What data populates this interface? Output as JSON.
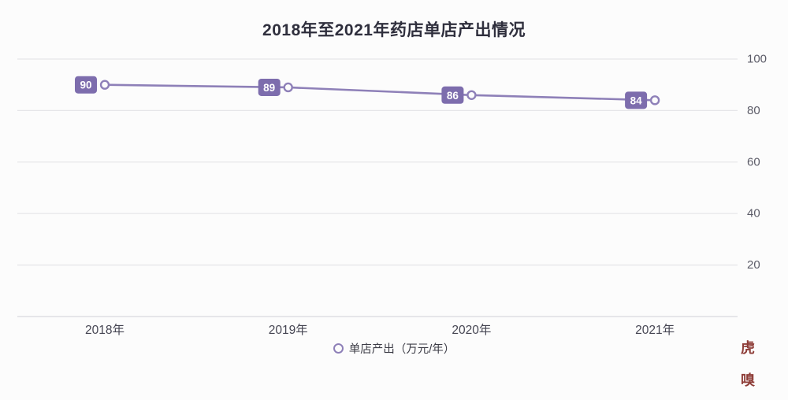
{
  "title": "2018年至2021年药店单店产出情况",
  "legend": {
    "label": "单店产出（万元/年）"
  },
  "watermark": {
    "line1": "虎",
    "line2": "嗅"
  },
  "colors": {
    "background": "#fcfcfc",
    "line": "#8e80b8",
    "badge": "#7d6dad",
    "badge_text": "#ffffff",
    "grid": "#e5e5e8",
    "axis": "#d9d9dd",
    "title": "#2f2f3d",
    "ytick": "#5c5c68",
    "xtick": "#464653",
    "watermark": "#8e3d38"
  },
  "chart_data": {
    "type": "line",
    "title": "2018年至2021年药店单店产出情况",
    "categories": [
      "2018年",
      "2019年",
      "2020年",
      "2021年"
    ],
    "series": [
      {
        "name": "单店产出（万元/年）",
        "values": [
          90,
          89,
          86,
          84
        ]
      }
    ],
    "data_labels": [
      "90",
      "89",
      "86",
      "84"
    ],
    "xlabel": "",
    "ylabel": "",
    "ylim": [
      0,
      100
    ],
    "yticks": [
      20,
      40,
      60,
      80,
      100
    ],
    "y_axis_side": "right",
    "grid": true,
    "legend_position": "bottom",
    "marker": "open-circle"
  }
}
